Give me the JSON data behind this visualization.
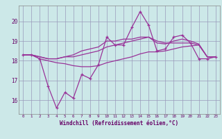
{
  "x": [
    0,
    1,
    2,
    3,
    4,
    5,
    6,
    7,
    8,
    9,
    10,
    11,
    12,
    13,
    14,
    15,
    16,
    17,
    18,
    19,
    20,
    21,
    22,
    23
  ],
  "line1": [
    18.3,
    18.3,
    18.1,
    16.7,
    15.6,
    16.4,
    16.1,
    17.3,
    17.1,
    17.8,
    19.2,
    18.8,
    18.8,
    19.7,
    20.5,
    19.8,
    18.5,
    18.6,
    19.2,
    19.3,
    18.9,
    18.1,
    18.1,
    18.2
  ],
  "line2": [
    18.3,
    18.3,
    18.2,
    18.1,
    18.1,
    18.2,
    18.2,
    18.3,
    18.4,
    18.5,
    18.7,
    18.8,
    18.9,
    19.0,
    19.1,
    19.2,
    19.0,
    18.9,
    18.9,
    18.9,
    18.9,
    18.8,
    18.2,
    18.2
  ],
  "line3": [
    18.3,
    18.3,
    18.2,
    18.1,
    18.1,
    18.2,
    18.3,
    18.5,
    18.6,
    18.7,
    19.0,
    19.0,
    19.1,
    19.1,
    19.2,
    19.2,
    18.9,
    18.85,
    19.0,
    19.1,
    19.0,
    18.85,
    18.2,
    18.2
  ],
  "line4": [
    18.3,
    18.3,
    18.1,
    18.0,
    17.9,
    17.85,
    17.75,
    17.7,
    17.7,
    17.75,
    17.9,
    18.0,
    18.1,
    18.2,
    18.35,
    18.45,
    18.45,
    18.5,
    18.6,
    18.7,
    18.75,
    18.8,
    18.2,
    18.2
  ],
  "color": "#993399",
  "bg_color": "#cce8e8",
  "grid_color": "#9999bb",
  "xlabel": "Windchill (Refroidissement éolien,°C)",
  "ylim": [
    15.3,
    20.8
  ],
  "yticks": [
    16,
    17,
    18,
    19,
    20
  ],
  "xticks": [
    0,
    1,
    2,
    3,
    4,
    5,
    6,
    7,
    8,
    9,
    10,
    11,
    12,
    13,
    14,
    15,
    16,
    17,
    18,
    19,
    20,
    21,
    22,
    23
  ]
}
